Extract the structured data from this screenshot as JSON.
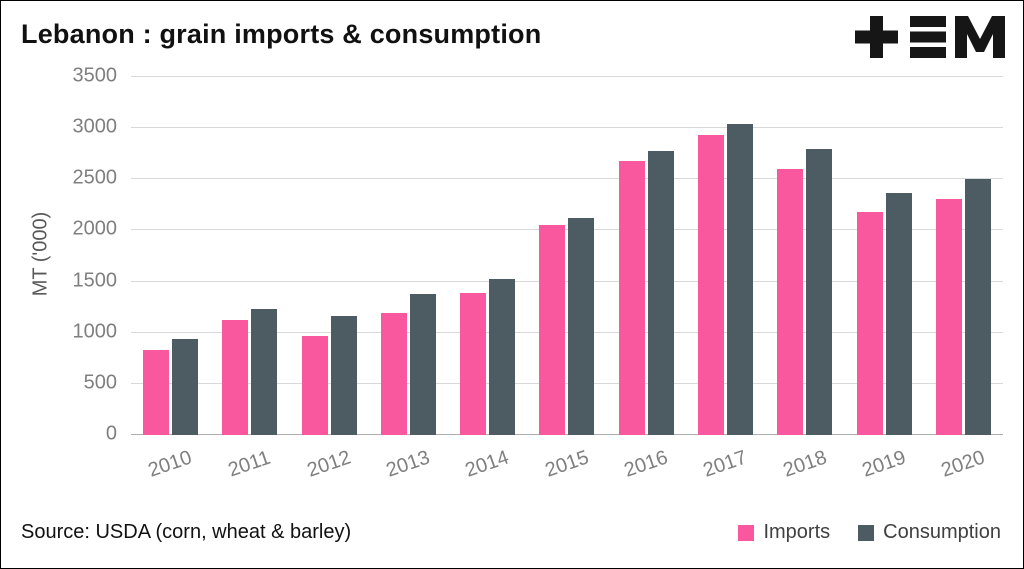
{
  "title": "Lebanon : grain imports & consumption",
  "source": "Source: USDA (corn, wheat & barley)",
  "icons": {
    "logo": "plus-equals-m-logo"
  },
  "colors": {
    "imports": "#f9579e",
    "consumption": "#4d5c63",
    "grid": "#d9d9d9",
    "axis_text": "#7f7f7f"
  },
  "chart_data": {
    "type": "bar",
    "title": "Lebanon : grain imports & consumption",
    "xlabel": "",
    "ylabel": "MT ('000)",
    "ylim": [
      0,
      3500
    ],
    "yticks": [
      0,
      500,
      1000,
      1500,
      2000,
      2500,
      3000,
      3500
    ],
    "grid": true,
    "legend_position": "bottom-right",
    "categories": [
      "2010",
      "2011",
      "2012",
      "2013",
      "2014",
      "2015",
      "2016",
      "2017",
      "2018",
      "2019",
      "2020"
    ],
    "series": [
      {
        "name": "Imports",
        "color": "#f9579e",
        "values": [
          830,
          1120,
          970,
          1190,
          1390,
          2050,
          2680,
          2930,
          2600,
          2180,
          2310
        ]
      },
      {
        "name": "Consumption",
        "color": "#4d5c63",
        "values": [
          940,
          1230,
          1160,
          1380,
          1530,
          2120,
          2780,
          3040,
          2800,
          2370,
          2500
        ]
      }
    ]
  }
}
